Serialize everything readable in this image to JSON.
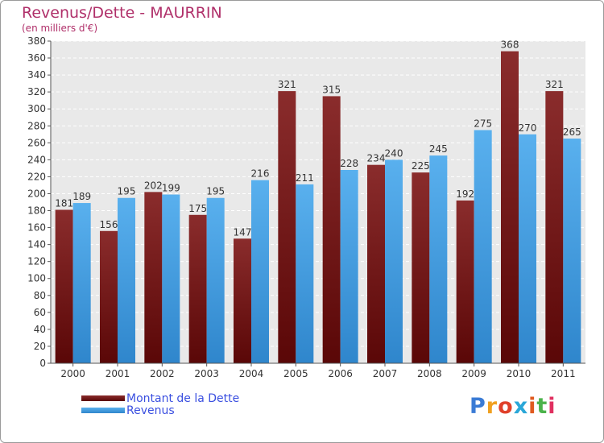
{
  "header": {
    "title": "Revenus/Dette - MAURRIN",
    "subtitle": "(en milliers d'€)"
  },
  "chart_data": {
    "type": "bar",
    "categories": [
      "2000",
      "2001",
      "2002",
      "2003",
      "2004",
      "2005",
      "2006",
      "2007",
      "2008",
      "2009",
      "2010",
      "2011"
    ],
    "series": [
      {
        "name": "Montant de la Dette",
        "values": [
          181,
          156,
          202,
          175,
          147,
          321,
          315,
          234,
          225,
          192,
          368,
          321
        ],
        "color": "#7a1c1c"
      },
      {
        "name": "Revenus",
        "values": [
          189,
          195,
          199,
          195,
          216,
          211,
          228,
          240,
          245,
          275,
          270,
          265
        ],
        "color": "#3d9ee6"
      }
    ],
    "ylim": [
      0,
      380
    ],
    "ytick_step": 20,
    "grid": true,
    "legend_position": "bottom-left"
  },
  "branding": {
    "logo_text": "Proxiti",
    "letter_colors": [
      "#3a7bd5",
      "#f0a020",
      "#e0402a",
      "#2aa7d8",
      "#e05a20",
      "#4bb34b",
      "#e03060"
    ]
  }
}
